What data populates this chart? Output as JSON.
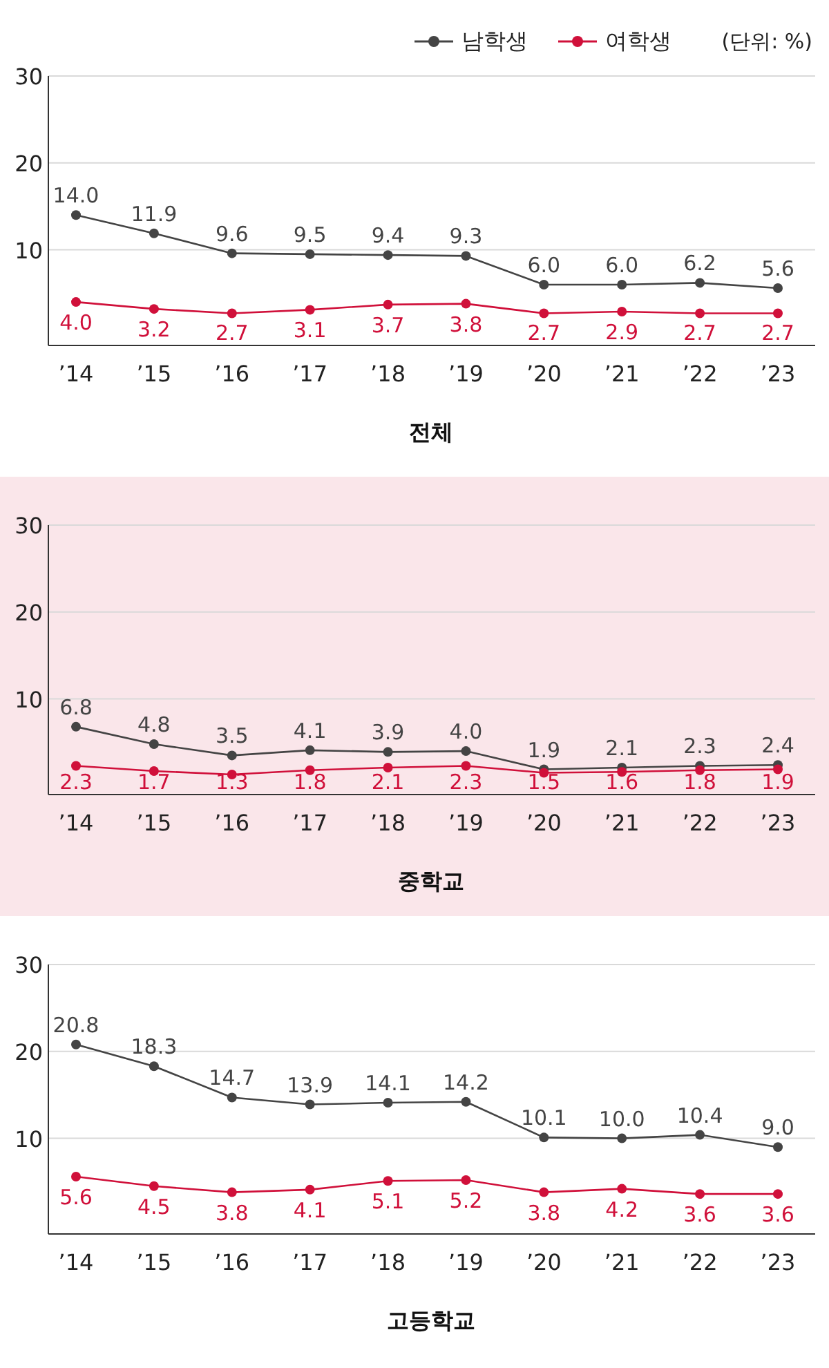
{
  "chart_data": [
    {
      "type": "line",
      "title": "전체",
      "categories": [
        "’14",
        "’15",
        "’16",
        "’17",
        "’18",
        "’19",
        "’20",
        "’21",
        "’22",
        "’23"
      ],
      "ylim": [
        -1,
        30
      ],
      "yticks": [
        10,
        20,
        30
      ],
      "grid": "y",
      "legend": "top right",
      "marker": "circle",
      "annotations": [
        "(단위: %)"
      ],
      "series": [
        {
          "name": "남학생",
          "color": "#444444",
          "values": [
            14.0,
            11.9,
            9.6,
            9.5,
            9.4,
            9.3,
            6.0,
            6.0,
            6.2,
            5.6
          ],
          "value_labels": [
            "14.0",
            "11.9",
            "9.6",
            "9.5",
            "9.4",
            "9.3",
            "6.0",
            "6.0",
            "6.2",
            "5.6"
          ]
        },
        {
          "name": "여학생",
          "color": "#d0103a",
          "values": [
            4.0,
            3.2,
            2.7,
            3.1,
            3.7,
            3.8,
            2.7,
            2.9,
            2.7,
            2.7
          ],
          "value_labels": [
            "4.0",
            "3.2",
            "2.7",
            "3.1",
            "3.7",
            "3.8",
            "2.7",
            "2.9",
            "2.7",
            "2.7"
          ]
        }
      ]
    },
    {
      "type": "line",
      "title": "중학교",
      "categories": [
        "’14",
        "’15",
        "’16",
        "’17",
        "’18",
        "’19",
        "’20",
        "’21",
        "’22",
        "’23"
      ],
      "ylim": [
        -1,
        30
      ],
      "yticks": [
        10,
        20,
        30
      ],
      "grid": "y",
      "marker": "circle",
      "series": [
        {
          "color": "#444444",
          "values": [
            6.8,
            4.8,
            3.5,
            4.1,
            3.9,
            4.0,
            1.9,
            2.1,
            2.3,
            2.4
          ],
          "value_labels": [
            "6.8",
            "4.8",
            "3.5",
            "4.1",
            "3.9",
            "4.0",
            "1.9",
            "2.1",
            "2.3",
            "2.4"
          ]
        },
        {
          "color": "#d0103a",
          "values": [
            2.3,
            1.7,
            1.3,
            1.8,
            2.1,
            2.3,
            1.5,
            1.6,
            1.8,
            1.9
          ],
          "value_labels": [
            "2.3",
            "1.7",
            "1.3",
            "1.8",
            "2.1",
            "2.3",
            "1.5",
            "1.6",
            "1.8",
            "1.9"
          ]
        }
      ]
    },
    {
      "type": "line",
      "title": "고등학교",
      "categories": [
        "’14",
        "’15",
        "’16",
        "’17",
        "’18",
        "’19",
        "’20",
        "’21",
        "’22",
        "’23"
      ],
      "ylim": [
        -1,
        30
      ],
      "yticks": [
        10,
        20,
        30
      ],
      "grid": "y",
      "marker": "circle",
      "series": [
        {
          "color": "#444444",
          "values": [
            20.8,
            18.3,
            14.7,
            13.9,
            14.1,
            14.2,
            10.1,
            10.0,
            10.4,
            9.0
          ],
          "value_labels": [
            "20.8",
            "18.3",
            "14.7",
            "13.9",
            "14.1",
            "14.2",
            "10.1",
            "10.0",
            "10.4",
            "9.0"
          ]
        },
        {
          "color": "#d0103a",
          "values": [
            5.6,
            4.5,
            3.8,
            4.1,
            5.1,
            5.2,
            3.8,
            4.2,
            3.6,
            3.6
          ],
          "value_labels": [
            "5.6",
            "4.5",
            "3.8",
            "4.1",
            "5.1",
            "5.2",
            "3.8",
            "4.2",
            "3.6",
            "3.6"
          ]
        }
      ]
    }
  ]
}
